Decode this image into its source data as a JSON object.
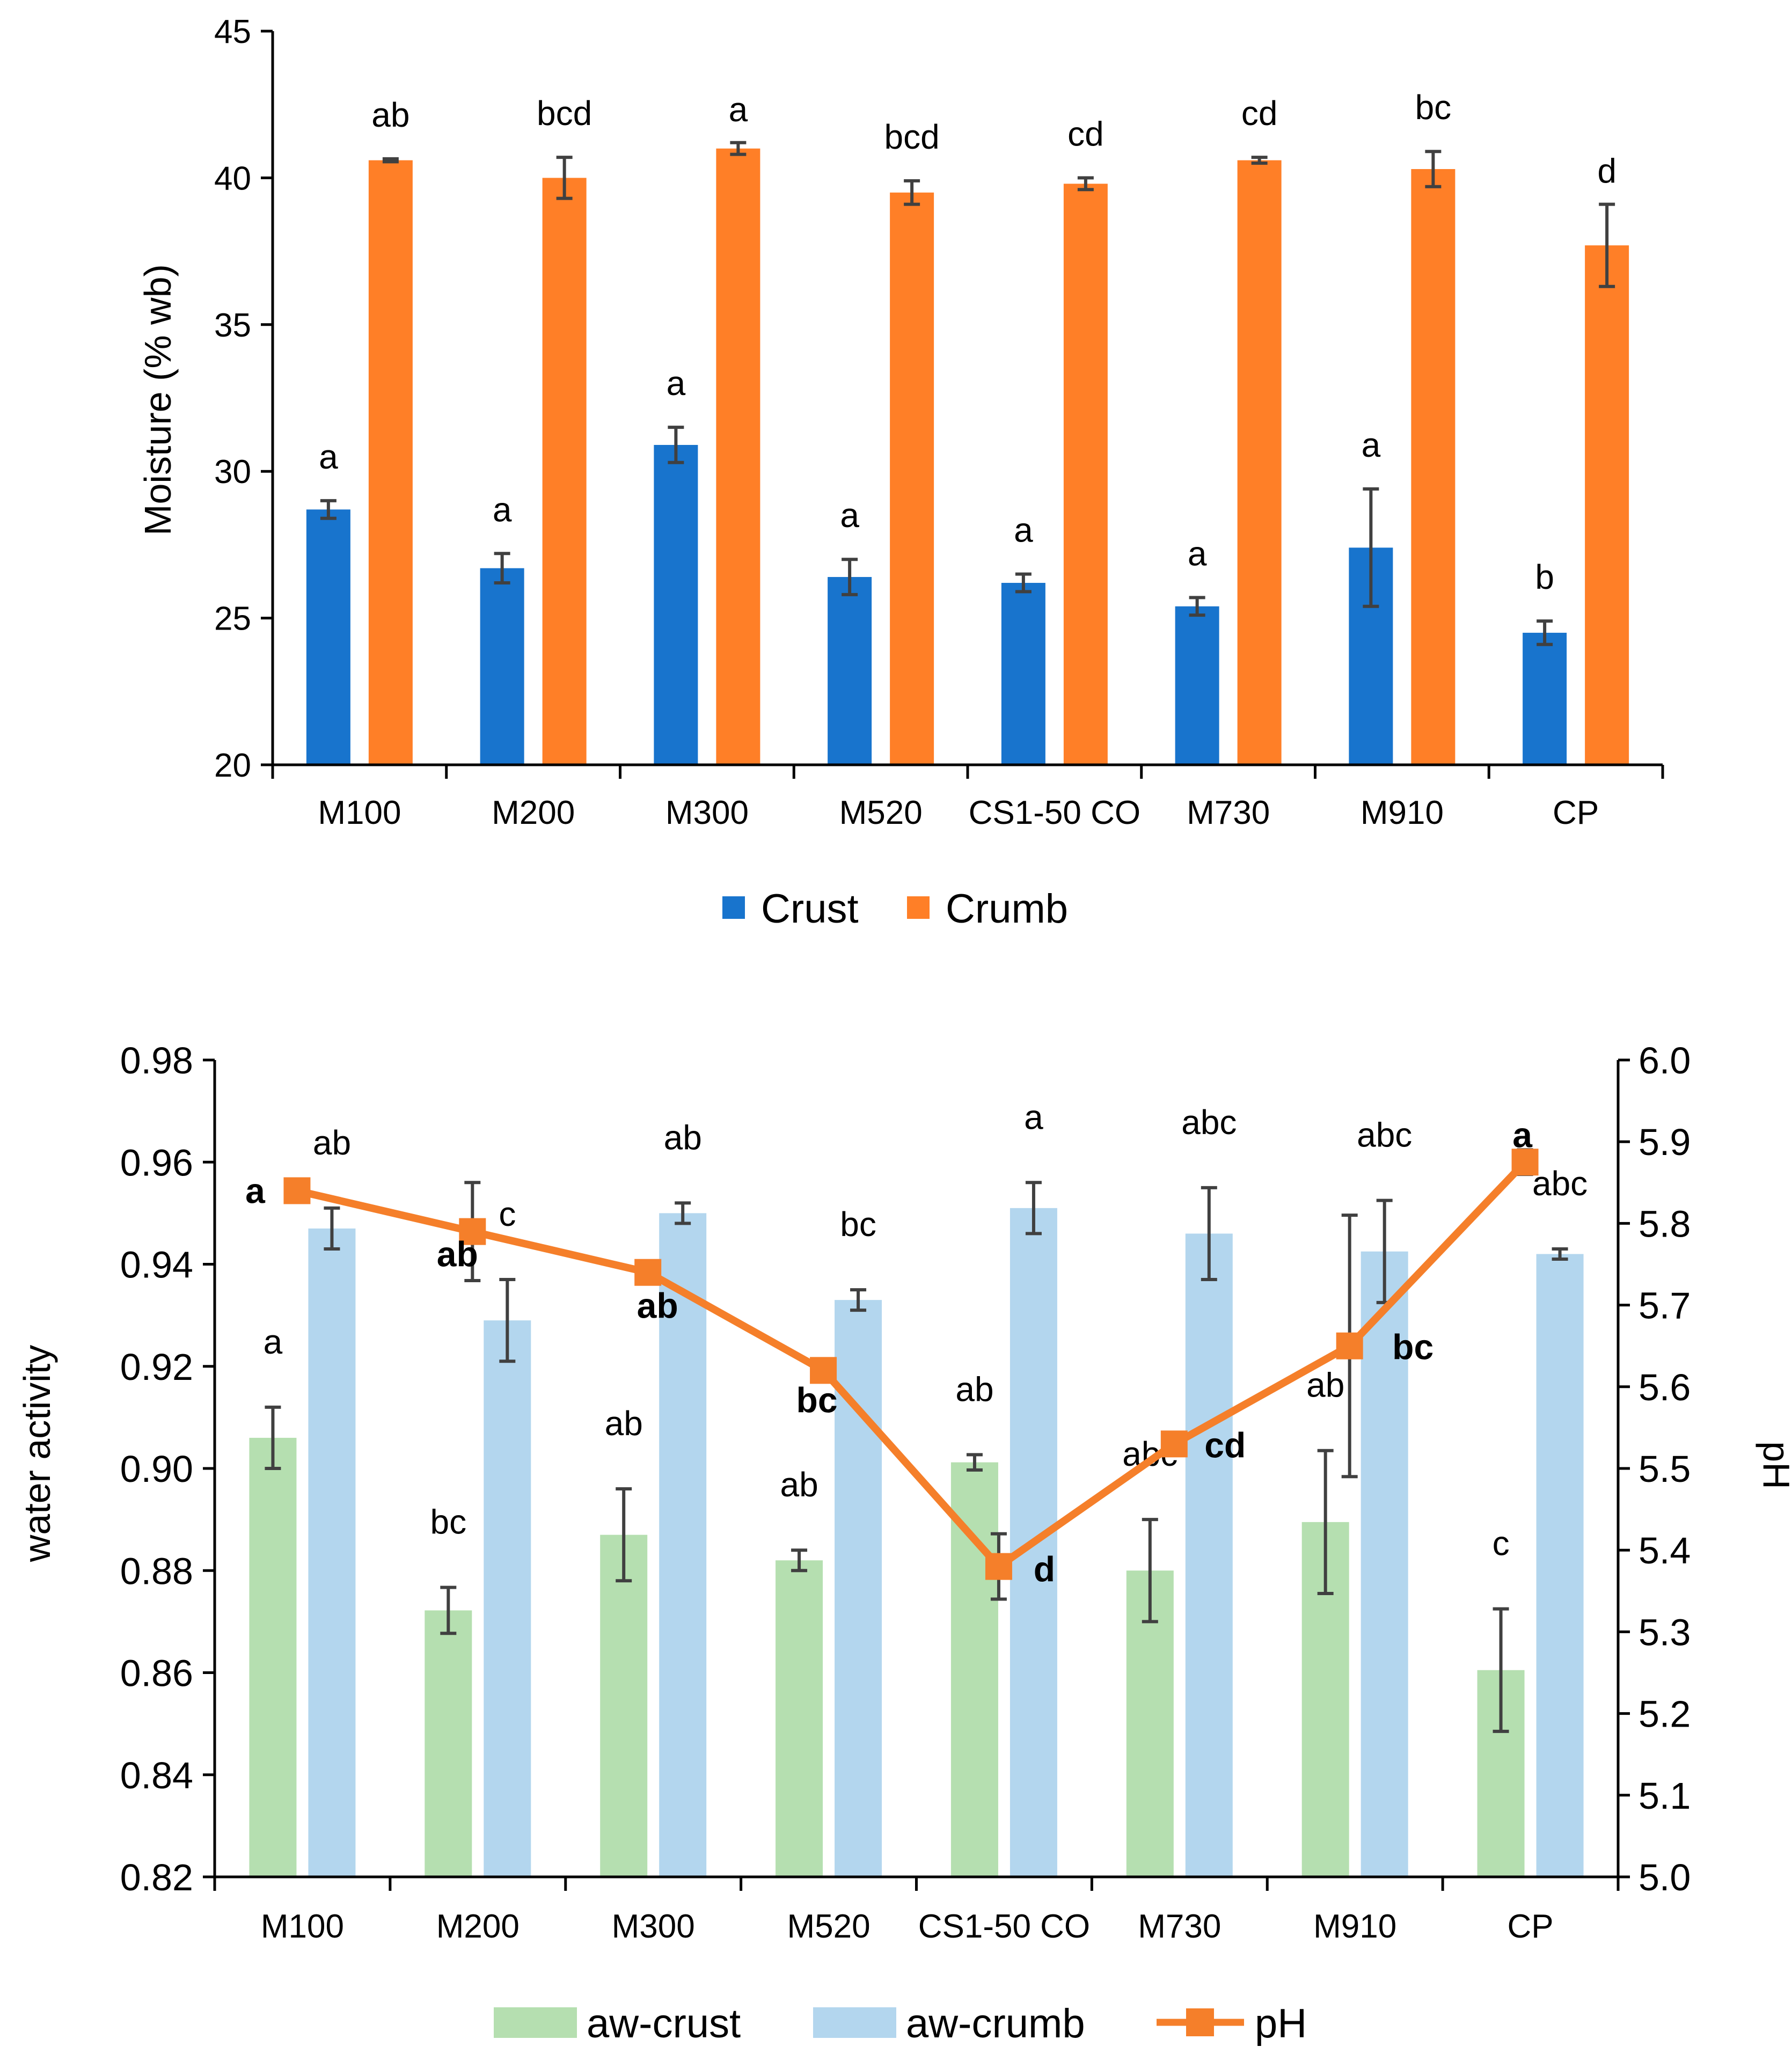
{
  "colors": {
    "crust": "#1874CD",
    "crumb": "#FF7F27",
    "aw_crust": "#B5DFB0",
    "aw_crumb": "#B3D6EE",
    "ph": "#F57F2A",
    "error": "#404040"
  },
  "chart_data": [
    {
      "type": "bar",
      "ylabel": "Moisture (% wb)",
      "xlabel": "",
      "ylim": [
        20,
        45
      ],
      "yticks": [
        "20",
        "25",
        "30",
        "35",
        "40",
        "45"
      ],
      "categories": [
        "M100",
        "M200",
        "M300",
        "M520",
        "CS1-50 CO",
        "M730",
        "M910",
        "CP"
      ],
      "legend_position": "bottom",
      "series": [
        {
          "name": "Crust",
          "values": [
            28.7,
            26.7,
            30.9,
            26.4,
            26.2,
            25.4,
            27.4,
            24.5
          ],
          "errors": [
            0.3,
            0.5,
            0.6,
            0.6,
            0.3,
            0.3,
            2.0,
            0.4
          ],
          "labels": [
            "a",
            "a",
            "a",
            "a",
            "a",
            "a",
            "a",
            "b"
          ]
        },
        {
          "name": "Crumb",
          "values": [
            40.6,
            40.0,
            41.0,
            39.5,
            39.8,
            40.6,
            40.3,
            37.7
          ],
          "errors": [
            0.05,
            0.7,
            0.2,
            0.4,
            0.2,
            0.1,
            0.6,
            1.4
          ],
          "labels": [
            "ab",
            "bcd",
            "a",
            "bcd",
            "cd",
            "cd",
            "bc",
            "d"
          ]
        }
      ]
    },
    {
      "type": "bar",
      "ylabel": "water activity",
      "y2label": "pH",
      "xlabel": "",
      "ylim": [
        0.82,
        0.98
      ],
      "y2lim": [
        5.0,
        6.0
      ],
      "yticks": [
        "0.82",
        "0.84",
        "0.86",
        "0.88",
        "0.90",
        "0.92",
        "0.94",
        "0.96",
        "0.98"
      ],
      "y2ticks": [
        "5.0",
        "5.1",
        "5.2",
        "5.3",
        "5.4",
        "5.5",
        "5.6",
        "5.7",
        "5.8",
        "5.9",
        "6.0"
      ],
      "categories": [
        "M100",
        "M200",
        "M300",
        "M520",
        "CS1-50 CO",
        "M730",
        "M910",
        "CP"
      ],
      "legend_position": "bottom",
      "series": [
        {
          "name": "aw-crust",
          "values": [
            0.906,
            0.8722,
            0.887,
            0.882,
            0.9012,
            0.88,
            0.8895,
            0.8605
          ],
          "errors": [
            0.006,
            0.0045,
            0.009,
            0.002,
            0.0015,
            0.01,
            0.014,
            0.012
          ],
          "labels": [
            "a",
            "bc",
            "ab",
            "ab",
            "ab",
            "abc",
            "ab",
            "c"
          ]
        },
        {
          "name": "aw-crumb",
          "values": [
            0.947,
            0.929,
            0.95,
            0.933,
            0.951,
            0.946,
            0.9425,
            0.942
          ],
          "errors": [
            0.004,
            0.008,
            0.002,
            0.002,
            0.005,
            0.009,
            0.01,
            0.001
          ],
          "labels": [
            "ab",
            "c",
            "ab",
            "bc",
            "a",
            "abc",
            "abc",
            "abc"
          ]
        },
        {
          "name": "pH",
          "type": "line",
          "axis": "right",
          "values": [
            5.84,
            5.79,
            5.74,
            5.62,
            5.38,
            5.53,
            5.65,
            5.875
          ],
          "errors": [
            0.005,
            0.06,
            0.003,
            0.005,
            0.04,
            0.003,
            0.16,
            0.015
          ],
          "labels": [
            "a",
            "ab",
            "ab",
            "bc",
            "d",
            "cd",
            "bc",
            "a"
          ]
        }
      ]
    }
  ]
}
